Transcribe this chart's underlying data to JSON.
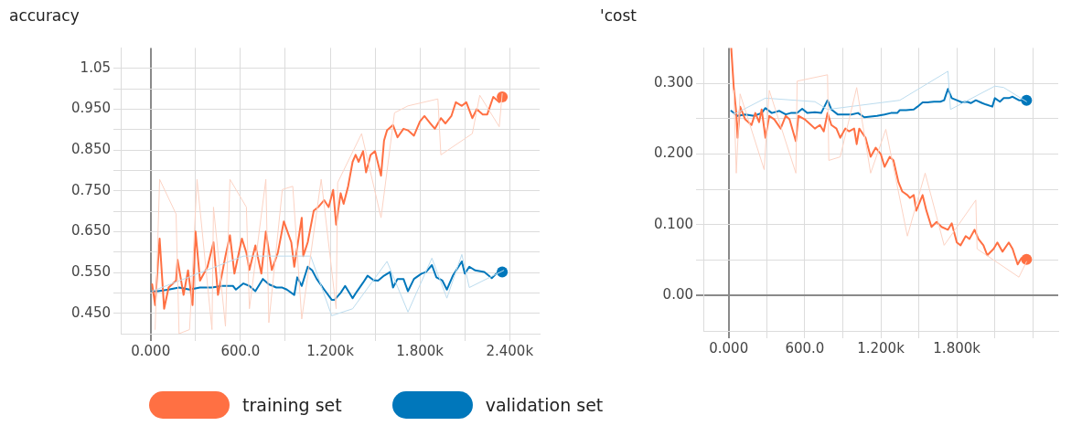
{
  "chart_data": [
    {
      "type": "line",
      "title": "accuracy",
      "xlim": [
        -200,
        2600
      ],
      "ylim": [
        0.4,
        1.1
      ],
      "xticks": [
        {
          "value": 0,
          "label": "0.000"
        },
        {
          "value": 300,
          "label": null
        },
        {
          "value": 600,
          "label": "600.0"
        },
        {
          "value": 900,
          "label": null
        },
        {
          "value": 1200,
          "label": "1.200k"
        },
        {
          "value": 1500,
          "label": null
        },
        {
          "value": 1800,
          "label": "1.800k"
        },
        {
          "value": 2100,
          "label": null
        },
        {
          "value": 2400,
          "label": "2.400k"
        }
      ],
      "yticks": [
        {
          "value": 0.45,
          "label": "0.450"
        },
        {
          "value": 0.5,
          "label": null
        },
        {
          "value": 0.55,
          "label": "0.550"
        },
        {
          "value": 0.6,
          "label": null
        },
        {
          "value": 0.65,
          "label": "0.650"
        },
        {
          "value": 0.7,
          "label": null
        },
        {
          "value": 0.75,
          "label": "0.750"
        },
        {
          "value": 0.8,
          "label": null
        },
        {
          "value": 0.85,
          "label": "0.850"
        },
        {
          "value": 0.9,
          "label": null
        },
        {
          "value": 0.95,
          "label": "0.950"
        },
        {
          "value": 1.0,
          "label": null
        },
        {
          "value": 1.05,
          "label": "1.05"
        }
      ],
      "grid": true,
      "legend": "bottom",
      "marker": "none",
      "series": [
        {
          "color": "#fcd3c4",
          "x": [
            30,
            60,
            170,
            190,
            260,
            310,
            410,
            420,
            500,
            530,
            640,
            660,
            770,
            790,
            880,
            950,
            1010,
            1140,
            1240,
            1250,
            1410,
            1540,
            1630,
            1720,
            1920,
            1940,
            2150,
            2200,
            2330,
            2350
          ],
          "values": [
            0.41,
            0.778,
            0.693,
            0.4,
            0.41,
            0.778,
            0.41,
            0.71,
            0.418,
            0.778,
            0.71,
            0.461,
            0.778,
            0.427,
            0.753,
            0.761,
            0.436,
            0.778,
            0.461,
            0.77,
            0.89,
            0.684,
            0.941,
            0.958,
            0.975,
            0.838,
            0.89,
            0.984,
            0.907,
            0.988
          ]
        },
        {
          "color": "#bcdcee",
          "x": [
            10,
            620,
            1070,
            1210,
            1350,
            1580,
            1720,
            1880,
            1980,
            2080,
            2130,
            2360
          ],
          "values": [
            0.504,
            0.59,
            0.59,
            0.444,
            0.461,
            0.577,
            0.453,
            0.585,
            0.487,
            0.594,
            0.513,
            0.555
          ]
        },
        {
          "name": "training set",
          "color": "#ff7043",
          "x": [
            10,
            30,
            60,
            90,
            120,
            170,
            180,
            220,
            250,
            280,
            300,
            330,
            380,
            420,
            450,
            500,
            530,
            560,
            610,
            640,
            660,
            700,
            740,
            770,
            810,
            850,
            890,
            940,
            960,
            1010,
            1020,
            1050,
            1090,
            1120,
            1160,
            1190,
            1220,
            1240,
            1270,
            1290,
            1320,
            1350,
            1370,
            1390,
            1420,
            1440,
            1470,
            1500,
            1540,
            1560,
            1580,
            1620,
            1650,
            1690,
            1720,
            1760,
            1800,
            1830,
            1870,
            1900,
            1940,
            1970,
            2010,
            2040,
            2080,
            2110,
            2150,
            2180,
            2220,
            2250,
            2290,
            2330,
            2350
          ],
          "values": [
            0.521,
            0.47,
            0.633,
            0.461,
            0.513,
            0.53,
            0.581,
            0.495,
            0.555,
            0.47,
            0.65,
            0.53,
            0.564,
            0.624,
            0.495,
            0.59,
            0.641,
            0.547,
            0.633,
            0.598,
            0.556,
            0.616,
            0.547,
            0.65,
            0.556,
            0.598,
            0.675,
            0.624,
            0.564,
            0.684,
            0.59,
            0.624,
            0.701,
            0.71,
            0.727,
            0.71,
            0.752,
            0.667,
            0.744,
            0.718,
            0.761,
            0.821,
            0.838,
            0.821,
            0.847,
            0.795,
            0.838,
            0.847,
            0.787,
            0.873,
            0.898,
            0.911,
            0.881,
            0.902,
            0.898,
            0.885,
            0.92,
            0.933,
            0.915,
            0.902,
            0.928,
            0.915,
            0.933,
            0.967,
            0.958,
            0.967,
            0.928,
            0.95,
            0.937,
            0.937,
            0.98,
            0.967,
            0.98
          ]
        },
        {
          "name": "validation set",
          "color": "#0077bb",
          "x": [
            10,
            50,
            120,
            190,
            260,
            330,
            410,
            480,
            550,
            570,
            620,
            660,
            700,
            750,
            790,
            840,
            880,
            910,
            960,
            980,
            1010,
            1050,
            1080,
            1110,
            1160,
            1210,
            1230,
            1270,
            1300,
            1350,
            1380,
            1420,
            1450,
            1490,
            1520,
            1560,
            1600,
            1620,
            1650,
            1690,
            1720,
            1760,
            1810,
            1840,
            1880,
            1910,
            1950,
            1980,
            2020,
            2080,
            2100,
            2130,
            2170,
            2230,
            2280,
            2310,
            2350
          ],
          "values": [
            0.504,
            0.504,
            0.508,
            0.513,
            0.508,
            0.513,
            0.513,
            0.517,
            0.517,
            0.508,
            0.523,
            0.517,
            0.504,
            0.534,
            0.521,
            0.513,
            0.513,
            0.508,
            0.495,
            0.538,
            0.517,
            0.564,
            0.555,
            0.534,
            0.508,
            0.483,
            0.483,
            0.5,
            0.517,
            0.487,
            0.504,
            0.525,
            0.542,
            0.531,
            0.53,
            0.542,
            0.551,
            0.513,
            0.534,
            0.534,
            0.504,
            0.534,
            0.547,
            0.551,
            0.568,
            0.538,
            0.53,
            0.508,
            0.542,
            0.577,
            0.547,
            0.564,
            0.555,
            0.551,
            0.536,
            0.547,
            0.551
          ]
        },
        {
          "type": "scatter",
          "marker": "circle",
          "color": "#ff7043",
          "x": [
            2350
          ],
          "values": [
            0.98
          ]
        },
        {
          "type": "scatter",
          "marker": "circle",
          "color": "#0077bb",
          "x": [
            2350
          ],
          "values": [
            0.551
          ]
        }
      ]
    },
    {
      "type": "line",
      "title": "'cost",
      "xlim": [
        -200,
        2600
      ],
      "ylim": [
        -0.05,
        0.35
      ],
      "xticks": [
        {
          "value": 0,
          "label": "0.000"
        },
        {
          "value": 300,
          "label": null
        },
        {
          "value": 600,
          "label": "600.0"
        },
        {
          "value": 900,
          "label": null
        },
        {
          "value": 1200,
          "label": "1.200k"
        },
        {
          "value": 1500,
          "label": null
        },
        {
          "value": 1800,
          "label": "1.800k"
        },
        {
          "value": 2100,
          "label": null
        },
        {
          "value": 2400,
          "label": null
        }
      ],
      "yticks": [
        {
          "value": 0,
          "label": "0.00"
        },
        {
          "value": 0.05,
          "label": null
        },
        {
          "value": 0.1,
          "label": "0.100"
        },
        {
          "value": 0.15,
          "label": null
        },
        {
          "value": 0.2,
          "label": "0.200"
        },
        {
          "value": 0.25,
          "label": null
        },
        {
          "value": 0.3,
          "label": "0.300"
        }
      ],
      "grid": true,
      "marker": "none",
      "series": [
        {
          "color": "#fcd3c4",
          "x": [
            40,
            60,
            90,
            280,
            320,
            530,
            540,
            780,
            790,
            880,
            1010,
            1120,
            1240,
            1410,
            1550,
            1700,
            1950,
            1960,
            2290,
            2350
          ],
          "values": [
            0.29,
            0.173,
            0.285,
            0.178,
            0.29,
            0.173,
            0.303,
            0.312,
            0.191,
            0.196,
            0.294,
            0.173,
            0.235,
            0.084,
            0.173,
            0.071,
            0.135,
            0.066,
            0.026,
            0.048
          ]
        },
        {
          "color": "#bcdcee",
          "x": [
            40,
            290,
            680,
            780,
            1350,
            1730,
            1750,
            2100,
            2170,
            2350
          ],
          "values": [
            0.256,
            0.279,
            0.274,
            0.263,
            0.276,
            0.317,
            0.263,
            0.296,
            0.294,
            0.274
          ]
        },
        {
          "color": "#ff7043",
          "x": [
            20,
            40,
            60,
            70,
            90,
            130,
            180,
            210,
            240,
            260,
            290,
            320,
            360,
            410,
            450,
            480,
            530,
            550,
            600,
            650,
            680,
            720,
            750,
            780,
            810,
            850,
            880,
            920,
            950,
            990,
            1010,
            1030,
            1080,
            1120,
            1160,
            1200,
            1230,
            1270,
            1300,
            1340,
            1370,
            1410,
            1430,
            1460,
            1480,
            1530,
            1560,
            1600,
            1640,
            1680,
            1730,
            1760,
            1800,
            1830,
            1870,
            1900,
            1940,
            1970,
            2010,
            2040,
            2090,
            2120,
            2160,
            2210,
            2240,
            2280,
            2310,
            2350
          ],
          "values": [
            0.35,
            0.294,
            0.258,
            0.223,
            0.267,
            0.249,
            0.241,
            0.258,
            0.245,
            0.263,
            0.223,
            0.254,
            0.249,
            0.236,
            0.254,
            0.249,
            0.218,
            0.254,
            0.249,
            0.241,
            0.236,
            0.241,
            0.232,
            0.258,
            0.241,
            0.236,
            0.223,
            0.236,
            0.232,
            0.236,
            0.214,
            0.236,
            0.223,
            0.196,
            0.209,
            0.2,
            0.182,
            0.196,
            0.191,
            0.16,
            0.147,
            0.142,
            0.138,
            0.142,
            0.12,
            0.142,
            0.12,
            0.097,
            0.104,
            0.097,
            0.093,
            0.102,
            0.075,
            0.071,
            0.084,
            0.08,
            0.093,
            0.08,
            0.071,
            0.057,
            0.066,
            0.075,
            0.062,
            0.075,
            0.066,
            0.044,
            0.053,
            0.051
          ]
        },
        {
          "color": "#0077bb",
          "x": [
            20,
            70,
            130,
            200,
            260,
            290,
            340,
            400,
            450,
            490,
            540,
            580,
            620,
            680,
            730,
            780,
            810,
            860,
            920,
            970,
            1020,
            1070,
            1120,
            1170,
            1230,
            1280,
            1330,
            1350,
            1400,
            1460,
            1490,
            1530,
            1570,
            1620,
            1670,
            1700,
            1730,
            1760,
            1800,
            1840,
            1880,
            1910,
            1950,
            2000,
            2030,
            2080,
            2100,
            2140,
            2170,
            2210,
            2240,
            2290,
            2350
          ],
          "values": [
            0.261,
            0.254,
            0.256,
            0.254,
            0.258,
            0.265,
            0.258,
            0.261,
            0.256,
            0.258,
            0.258,
            0.264,
            0.258,
            0.259,
            0.258,
            0.276,
            0.263,
            0.256,
            0.256,
            0.256,
            0.258,
            0.252,
            0.253,
            0.254,
            0.256,
            0.258,
            0.258,
            0.262,
            0.262,
            0.263,
            0.267,
            0.273,
            0.273,
            0.274,
            0.274,
            0.276,
            0.292,
            0.279,
            0.276,
            0.273,
            0.274,
            0.272,
            0.276,
            0.272,
            0.27,
            0.267,
            0.279,
            0.274,
            0.279,
            0.279,
            0.281,
            0.276,
            0.276
          ]
        },
        {
          "type": "scatter",
          "marker": "circle",
          "color": "#ff7043",
          "x": [
            2350
          ],
          "values": [
            0.051
          ]
        },
        {
          "type": "scatter",
          "marker": "circle",
          "color": "#0077bb",
          "x": [
            2350
          ],
          "values": [
            0.276
          ]
        }
      ]
    }
  ]
}
